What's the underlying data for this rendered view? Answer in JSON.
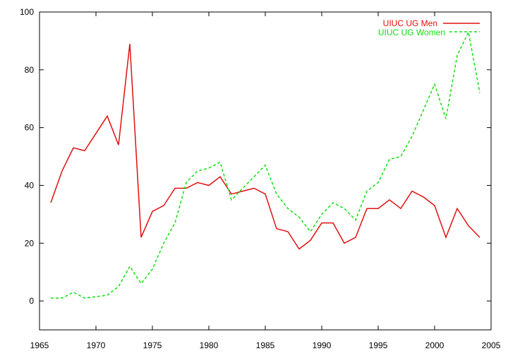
{
  "chart_data": {
    "type": "line",
    "title": "",
    "xlabel": "",
    "ylabel": "",
    "xlim": [
      1965,
      2005
    ],
    "ylim": [
      -10,
      100
    ],
    "xticks": [
      1965,
      1970,
      1975,
      1980,
      1985,
      1990,
      1995,
      2000,
      2005
    ],
    "yticks": [
      0,
      20,
      40,
      60,
      80,
      100
    ],
    "grid": false,
    "legend_position": "top-right",
    "series": [
      {
        "name": "UIUC UG Men",
        "color": "#e01010",
        "dash": "solid",
        "x": [
          1966,
          1967,
          1968,
          1969,
          1970,
          1971,
          1972,
          1973,
          1974,
          1975,
          1976,
          1977,
          1978,
          1979,
          1980,
          1981,
          1982,
          1983,
          1984,
          1985,
          1986,
          1987,
          1988,
          1989,
          1990,
          1991,
          1992,
          1993,
          1994,
          1995,
          1996,
          1997,
          1998,
          1999,
          2000,
          2001,
          2002,
          2003,
          2004
        ],
        "values": [
          34,
          45,
          53,
          52,
          58,
          64,
          54,
          89,
          22,
          31,
          33,
          39,
          39,
          41,
          40,
          43,
          37,
          38,
          39,
          37,
          25,
          24,
          18,
          21,
          27,
          27,
          20,
          22,
          32,
          32,
          35,
          32,
          38,
          36,
          33,
          22,
          32,
          26,
          22
        ]
      },
      {
        "name": "UIUC UG Women",
        "color": "#10e010",
        "dash": "dashed",
        "x": [
          1966,
          1967,
          1968,
          1969,
          1970,
          1971,
          1972,
          1973,
          1974,
          1975,
          1976,
          1977,
          1978,
          1979,
          1980,
          1981,
          1982,
          1983,
          1984,
          1985,
          1986,
          1987,
          1988,
          1989,
          1990,
          1991,
          1992,
          1993,
          1994,
          1995,
          1996,
          1997,
          1998,
          1999,
          2000,
          2001,
          2002,
          2003,
          2004
        ],
        "values": [
          1,
          1,
          3,
          1,
          1.5,
          2,
          5,
          12,
          6,
          11,
          20,
          27,
          41,
          45,
          46,
          48,
          35,
          39,
          43,
          47,
          37,
          32,
          29,
          24,
          30,
          34,
          32,
          28,
          38,
          41,
          49,
          50,
          57,
          66,
          75,
          63,
          85,
          93,
          72
        ]
      }
    ]
  }
}
